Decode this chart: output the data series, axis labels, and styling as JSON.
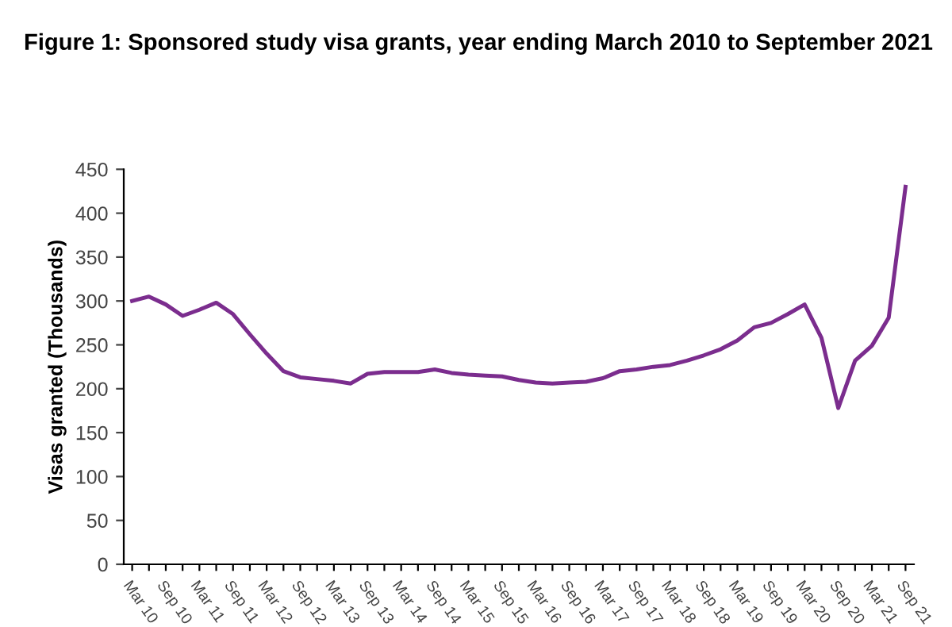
{
  "chart_data": {
    "type": "line",
    "title": "Figure 1: Sponsored study visa grants, year ending March 2010 to September 2021",
    "ylabel": "Visas granted (Thousands)",
    "categories": [
      "Mar 10",
      null,
      "Sep 10",
      null,
      "Mar 11",
      null,
      "Sep 11",
      null,
      "Mar 12",
      null,
      "Sep 12",
      null,
      "Mar 13",
      null,
      "Sep 13",
      null,
      "Mar 14",
      null,
      "Sep 14",
      null,
      "Mar 15",
      null,
      "Sep 15",
      null,
      "Mar 16",
      null,
      "Sep 16",
      null,
      "Mar 17",
      null,
      "Sep 17",
      null,
      "Mar 18",
      null,
      "Sep 18",
      null,
      "Mar 19",
      null,
      "Sep 19",
      null,
      "Mar 20",
      null,
      "Sep 20",
      null,
      "Mar 21",
      null,
      "Sep 21"
    ],
    "series": [
      {
        "color": "#7b2d8e",
        "values": [
          300,
          305,
          296,
          283,
          290,
          298,
          285,
          262,
          240,
          220,
          213,
          211,
          209,
          206,
          217,
          219,
          219,
          219,
          222,
          218,
          216,
          215,
          214,
          210,
          207,
          206,
          207,
          208,
          212,
          220,
          222,
          225,
          227,
          232,
          238,
          245,
          255,
          270,
          275,
          285,
          296,
          258,
          178,
          232,
          249,
          281,
          430
        ]
      }
    ],
    "ylim": [
      0,
      450
    ],
    "yticks": [
      0,
      50,
      100,
      150,
      200,
      250,
      300,
      350,
      400,
      450
    ],
    "grid": false,
    "legend": false,
    "marker": "none",
    "line_style": "solid"
  }
}
